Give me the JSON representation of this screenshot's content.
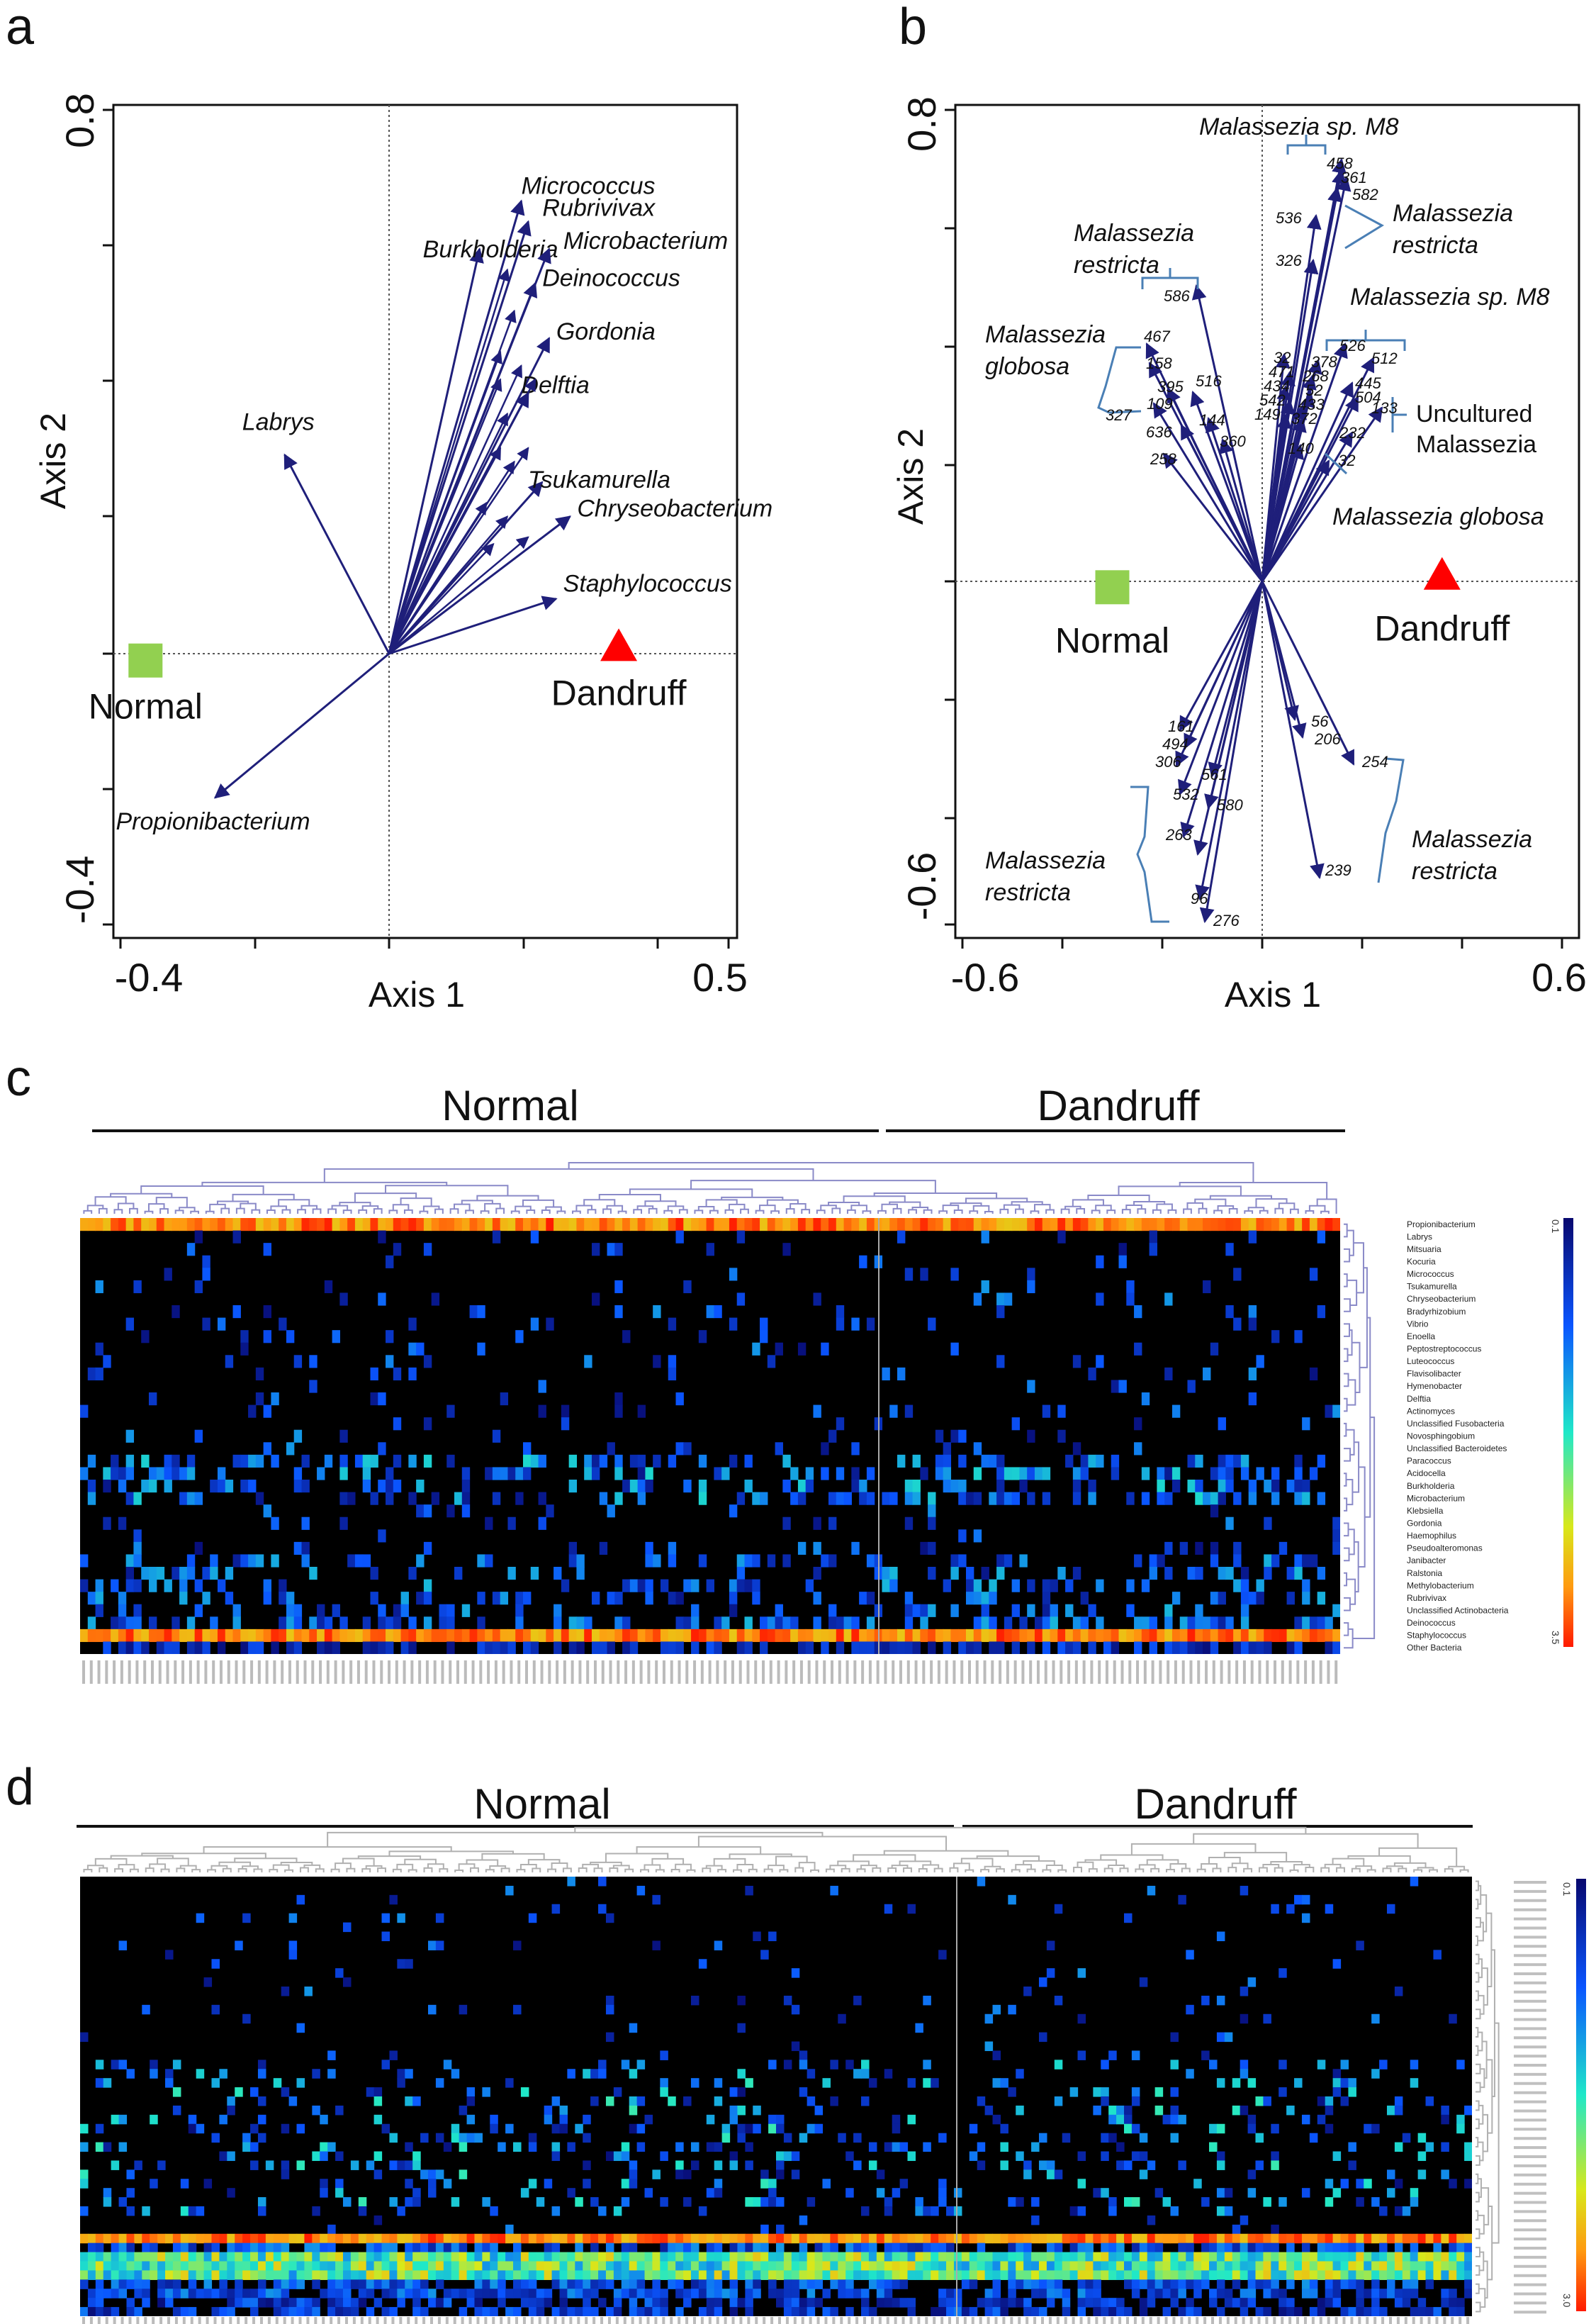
{
  "panels": {
    "a": {
      "letter": "a",
      "xlabel": "Axis 1",
      "ylabel": "Axis 2",
      "x_ticks": [
        "-0.4",
        "0.5"
      ],
      "y_ticks": [
        "0.8",
        "-0.4"
      ],
      "xlim": [
        -0.4,
        0.5
      ],
      "ylim": [
        -0.4,
        0.8
      ],
      "groups": [
        {
          "name": "Normal",
          "x": -0.35,
          "y": -0.01,
          "marker": "square",
          "color": "#92d050"
        },
        {
          "name": "Dandruff",
          "x": 0.33,
          "y": 0.01,
          "marker": "triangle",
          "color": "#ff0000"
        }
      ],
      "arrow_origin": [
        0,
        0
      ],
      "arrow_color": "#1f1f7a",
      "arrows": [
        {
          "label": "Micrococcus",
          "x": 0.19,
          "y": 0.66
        },
        {
          "label": "Rubrivivax",
          "x": 0.2,
          "y": 0.63
        },
        {
          "label": "Burkholderia",
          "x": 0.13,
          "y": 0.59
        },
        {
          "label": "Microbacterium",
          "x": 0.23,
          "y": 0.59
        },
        {
          "label": "Deinococcus",
          "x": 0.21,
          "y": 0.54
        },
        {
          "label": "Gordonia",
          "x": 0.23,
          "y": 0.46
        },
        {
          "label": "Delftia",
          "x": 0.2,
          "y": 0.38
        },
        {
          "label": "Tsukamurella",
          "x": 0.22,
          "y": 0.25
        },
        {
          "label": "Chryseobacterium",
          "x": 0.26,
          "y": 0.2
        },
        {
          "label": "Staphylococcus",
          "x": 0.24,
          "y": 0.08
        },
        {
          "label": "Labrys",
          "x": -0.15,
          "y": 0.29
        },
        {
          "label": "Propionibacterium",
          "x": -0.25,
          "y": -0.21
        }
      ]
    },
    "b": {
      "letter": "b",
      "xlabel": "Axis 1",
      "ylabel": "Axis 2",
      "x_ticks": [
        "-0.6",
        "0.6"
      ],
      "y_ticks": [
        "0.8",
        "-0.6"
      ],
      "xlim": [
        -0.6,
        0.6
      ],
      "ylim": [
        -0.6,
        0.8
      ],
      "groups": [
        {
          "name": "Normal",
          "x": -0.3,
          "y": -0.01,
          "marker": "square",
          "color": "#92d050"
        },
        {
          "name": "Dandruff",
          "x": 0.36,
          "y": 0.01,
          "marker": "triangle",
          "color": "#ff0000"
        }
      ],
      "arrow_origin": [
        0,
        0
      ],
      "arrow_color": "#1f1f7a",
      "numbers": [
        "458",
        "361",
        "582",
        "536",
        "326",
        "586",
        "467",
        "158",
        "395",
        "516",
        "109",
        "327",
        "144",
        "636",
        "360",
        "258",
        "32",
        "471",
        "434",
        "542",
        "149",
        "378",
        "268",
        "52",
        "433",
        "372",
        "140",
        "526",
        "512",
        "445",
        "504",
        "133",
        "232",
        "161",
        "494",
        "306",
        "561",
        "532",
        "580",
        "263",
        "96",
        "276",
        "56",
        "206",
        "254",
        "239"
      ],
      "species_labels": [
        "Malassezia sp. M8",
        "Malassezia",
        "restricta",
        "Malassezia",
        "restricta",
        "Malassezia sp. M8",
        "Malassezia",
        "globosa",
        "Uncultured",
        "Malassezia",
        "Malassezia globosa",
        "Malassezia",
        "restricta",
        "Malassezia",
        "restricta"
      ]
    },
    "c": {
      "letter": "c",
      "group_labels": [
        "Normal",
        "Dandruff"
      ],
      "scale_labels": [
        "0.1",
        "3.5"
      ],
      "row_labels": [
        "Propionibacterium",
        "Labrys",
        "Mitsuaria",
        "Kocuria",
        "Micrococcus",
        "Tsukamurella",
        "Chryseobacterium",
        "Bradyrhizobium",
        "Vibrio",
        "Enoella",
        "Peptostreptococcus",
        "Luteococcus",
        "Flavisolibacter",
        "Hymenobacter",
        "Delftia",
        "Actinomyces",
        "Unclassified Fusobacteria",
        "Novosphingobium",
        "Unclassified Bacteroidetes",
        "Paracoccus",
        "Acidocella",
        "Burkholderia",
        "Microbacterium",
        "Klebsiella",
        "Gordonia",
        "Haemophilus",
        "Pseudoalteromonas",
        "Janibacter",
        "Ralstonia",
        "Methylobacterium",
        "Rubrivivax",
        "Unclassified Actinobacteria",
        "Deinococcus",
        "Staphylococcus",
        "Other Bacteria"
      ]
    },
    "d": {
      "letter": "d",
      "group_labels": [
        "Normal",
        "Dandruff"
      ],
      "scale_labels": [
        "0.1",
        "3.0"
      ]
    }
  },
  "colors": {
    "heat_background": "#000000",
    "arrow": "#1f1f7a",
    "bracket": "#4a7fb5",
    "normal": "#92d050",
    "dandruff": "#ff0000"
  }
}
